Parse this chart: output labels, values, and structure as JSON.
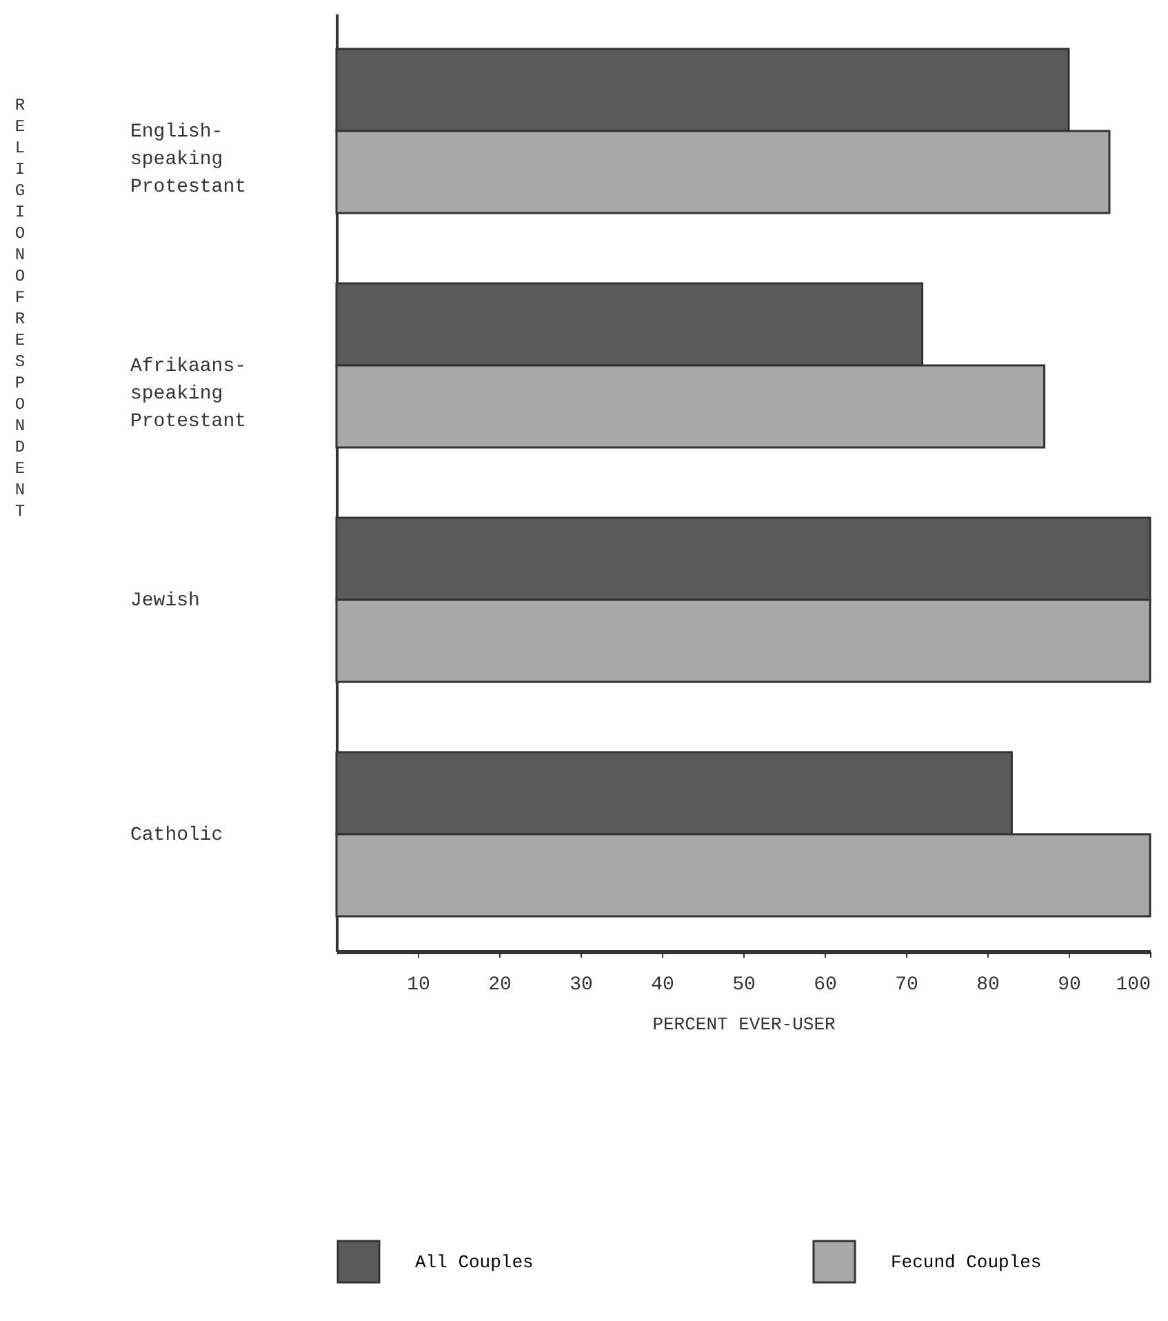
{
  "chart_data": {
    "type": "bar",
    "orientation": "horizontal",
    "xlabel": "PERCENT  EVER-USER",
    "ylabel": "RELIGION OF RESPONDENT",
    "categories": [
      "English-speaking Protestant",
      "Afrikaans-speaking Protestant",
      "Jewish",
      "Catholic"
    ],
    "series": [
      {
        "name": "All Couples",
        "color": "#5a5a5a",
        "values": [
          90,
          72,
          100,
          83
        ]
      },
      {
        "name": "Fecund Couples",
        "color": "#a8a8a8",
        "values": [
          95,
          87,
          100,
          100
        ]
      }
    ],
    "xlim": [
      0,
      100
    ],
    "xticks": [
      10,
      20,
      30,
      40,
      50,
      60,
      70,
      80,
      90,
      100
    ],
    "grid": false,
    "legend": "bottom"
  }
}
